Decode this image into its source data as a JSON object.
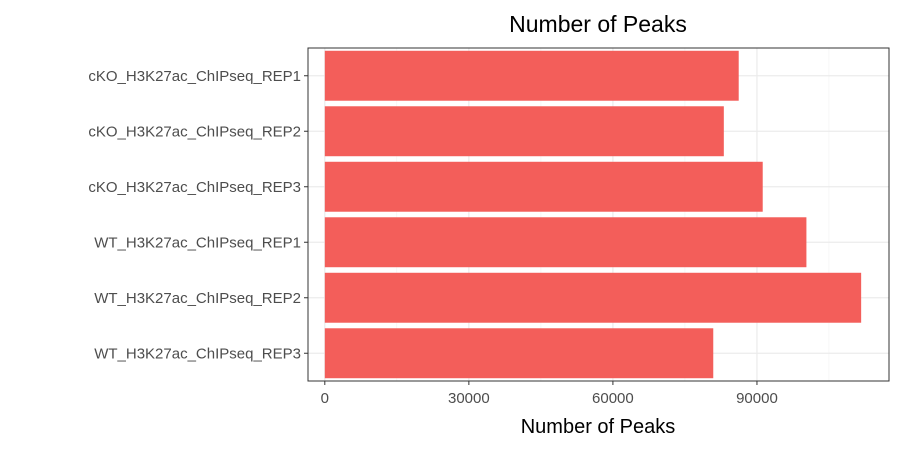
{
  "chart_data": {
    "type": "bar",
    "orientation": "horizontal",
    "title": "Number of Peaks",
    "xlabel": "Number of Peaks",
    "ylabel": "",
    "categories": [
      "cKO_H3K27ac_ChIPseq_REP1",
      "cKO_H3K27ac_ChIPseq_REP2",
      "cKO_H3K27ac_ChIPseq_REP3",
      "WT_H3K27ac_ChIPseq_REP1",
      "WT_H3K27ac_ChIPseq_REP2",
      "WT_H3K27ac_ChIPseq_REP3"
    ],
    "values": [
      86200,
      83100,
      91200,
      100300,
      111700,
      80900
    ],
    "xlim": [
      -3500,
      117500
    ],
    "xticks": [
      0,
      30000,
      60000,
      90000
    ],
    "xtick_labels": [
      "0",
      "30000",
      "60000",
      "90000"
    ],
    "bar_color": "#F35E5A",
    "grid": true,
    "legend": "none"
  }
}
